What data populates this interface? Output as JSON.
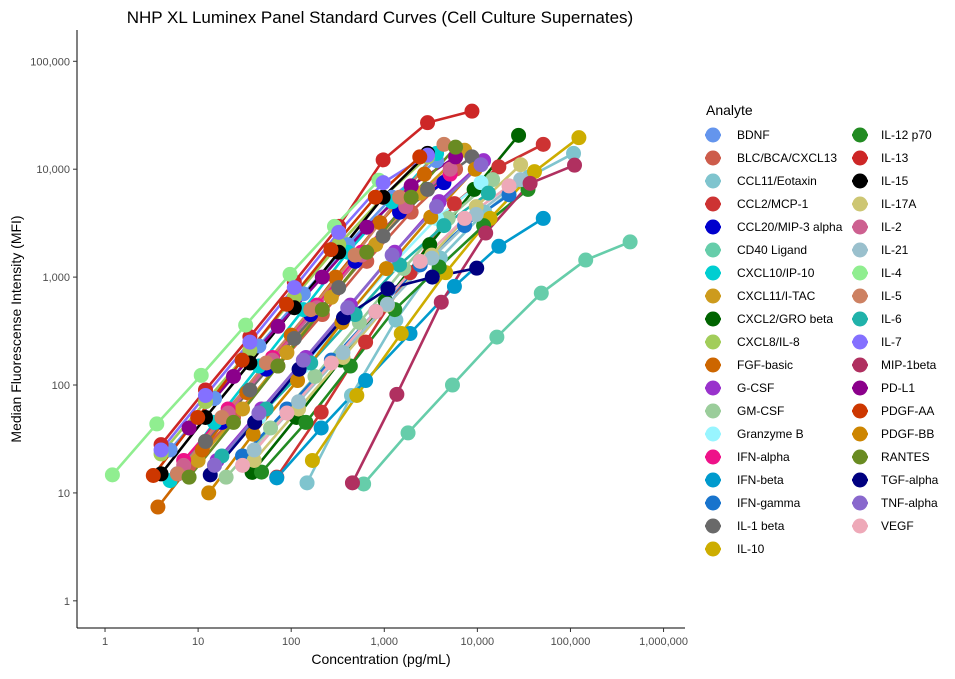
{
  "chart_data": {
    "type": "line",
    "title": "NHP XL Luminex Panel Standard Curves (Cell Culture Supernates)",
    "xlabel": "Concentration (pg/mL)",
    "ylabel": "Median Fluorescense Intensity (MFI)",
    "x_scale": "log10",
    "y_scale": "log10",
    "xlim": [
      0.5,
      1700000
    ],
    "ylim": [
      0.56,
      195000
    ],
    "x_ticks": [
      1,
      10,
      100,
      1000,
      10000,
      100000,
      1000000
    ],
    "x_tick_labels": [
      "1",
      "10",
      "100",
      "1,000",
      "10,000",
      "100,000",
      "1,000,000"
    ],
    "y_ticks": [
      1,
      10,
      100,
      1000,
      10000,
      100000
    ],
    "y_tick_labels": [
      "1",
      "10",
      "100",
      "1,000",
      "10,000",
      "100,000"
    ],
    "grid": false,
    "legend": {
      "title": "Analyte",
      "placement": "right"
    },
    "series": [
      {
        "name": "BDNF",
        "color": "#6495ED",
        "x0": 5,
        "y": [
          25,
          75,
          230,
          700,
          2000,
          5500,
          12000
        ]
      },
      {
        "name": "BLC/BCA/CXCL13",
        "color": "#CD5C4B",
        "x0": 8,
        "y": [
          18,
          50,
          150,
          450,
          1400,
          4000,
          10000
        ]
      },
      {
        "name": "CCL11/Eotaxin",
        "color": "#7FC4CE",
        "x0": 148,
        "y": [
          12.4,
          80,
          400,
          1500,
          4000,
          8500,
          14000
        ]
      },
      {
        "name": "CCL2/MCP-1",
        "color": "#CD3333",
        "x0": 70,
        "y": [
          14,
          56,
          250,
          1100,
          4800,
          10500,
          17000
        ]
      },
      {
        "name": "CCL20/MIP-3 alpha",
        "color": "#0000CD",
        "x0": 6,
        "y": [
          15,
          45,
          140,
          450,
          1400,
          4000,
          7500
        ]
      },
      {
        "name": "CD40 Ligand",
        "color": "#66CDAA",
        "x0": 600,
        "y": [
          12.1,
          36,
          100,
          278,
          710,
          1440,
          2120
        ]
      },
      {
        "name": "CXCL10/IP-10",
        "color": "#00CED1",
        "x0": 5,
        "y": [
          13,
          45,
          150,
          500,
          1700,
          5000,
          14000
        ]
      },
      {
        "name": "CXCL11/I-TAC",
        "color": "#CD9B1D",
        "x0": 10,
        "y": [
          20,
          60,
          200,
          650,
          2000,
          6000,
          15000
        ]
      },
      {
        "name": "CXCL2/GRO beta",
        "color": "#006400",
        "x0": 38,
        "y": [
          15.5,
          50,
          170,
          600,
          2000,
          6500,
          20600
        ]
      },
      {
        "name": "CXCL8/IL-8",
        "color": "#A2CD5A",
        "x0": 4,
        "y": [
          23,
          70,
          210,
          650,
          2000,
          5500,
          13000
        ]
      },
      {
        "name": "FGF-basic",
        "color": "#CD6600",
        "x0": 3.7,
        "y": [
          7.4,
          25,
          85,
          290,
          1000,
          3200,
          9000
        ]
      },
      {
        "name": "G-CSF",
        "color": "#9932CC",
        "x0": 16,
        "y": [
          20,
          60,
          180,
          550,
          1700,
          5000,
          12000
        ]
      },
      {
        "name": "GM-CSF",
        "color": "#9BCD9B",
        "x0": 20,
        "y": [
          14,
          40,
          120,
          380,
          1200,
          3500,
          8000
        ]
      },
      {
        "name": "Granzyme B",
        "color": "#98F5FF",
        "x0": 15,
        "y": [
          18,
          50,
          150,
          450,
          1300,
          3500,
          7500
        ]
      },
      {
        "name": "IFN-alpha",
        "color": "#EE1289",
        "x0": 7,
        "y": [
          20,
          60,
          180,
          550,
          1700,
          4500,
          9000
        ]
      },
      {
        "name": "IFN-beta",
        "color": "#009ACD",
        "x0": 70,
        "y": [
          13.8,
          40,
          110,
          300,
          820,
          1930,
          3500
        ]
      },
      {
        "name": "IFN-gamma",
        "color": "#1874CD",
        "x0": 30,
        "y": [
          22,
          60,
          170,
          480,
          1300,
          3000,
          5800
        ]
      },
      {
        "name": "IL-1 beta",
        "color": "#696969",
        "x0": 12,
        "y": [
          30,
          90,
          270,
          800,
          2400,
          6500,
          13000
        ]
      },
      {
        "name": "IL-10",
        "color": "#CDAD00",
        "x0": 169,
        "y": [
          20,
          80,
          300,
          1100,
          3500,
          9500,
          19600
        ]
      },
      {
        "name": "IL-12 p70",
        "color": "#228B22",
        "x0": 48,
        "y": [
          15.6,
          45,
          150,
          500,
          1240,
          3000,
          6500
        ]
      },
      {
        "name": "IL-13",
        "color": "#CD2626",
        "x0": 4,
        "y": [
          28,
          90,
          280,
          900,
          2950,
          12200,
          27000,
          34500
        ]
      },
      {
        "name": "IL-15",
        "color": "#000000",
        "x0": 4,
        "y": [
          15,
          50,
          160,
          520,
          1700,
          5500,
          14000
        ]
      },
      {
        "name": "IL-17A",
        "color": "#CDC673",
        "x0": 40,
        "y": [
          20,
          60,
          180,
          550,
          1600,
          4500,
          11000
        ]
      },
      {
        "name": "IL-2",
        "color": "#CD6090",
        "x0": 7,
        "y": [
          18,
          55,
          170,
          520,
          1600,
          4500,
          10000
        ]
      },
      {
        "name": "IL-21",
        "color": "#9AC0CD",
        "x0": 40,
        "y": [
          25,
          70,
          200,
          560,
          1500,
          3800,
          8000
        ]
      },
      {
        "name": "IL-4",
        "color": "#90EE90",
        "x0": 1.2,
        "y": [
          14.7,
          43.6,
          123,
          359,
          1060,
          2950,
          7900
        ]
      },
      {
        "name": "IL-5",
        "color": "#CD8162",
        "x0": 6,
        "y": [
          15,
          50,
          160,
          500,
          1600,
          5500,
          17000
        ]
      },
      {
        "name": "IL-6",
        "color": "#20B2AA",
        "x0": 18,
        "y": [
          22,
          60,
          160,
          450,
          1300,
          3000,
          6000
        ]
      },
      {
        "name": "IL-7",
        "color": "#8470FF",
        "x0": 4,
        "y": [
          25,
          80,
          250,
          800,
          2600,
          7500,
          13500
        ]
      },
      {
        "name": "MIP-1beta",
        "color": "#B03060",
        "x0": 455,
        "y": [
          12.4,
          82,
          585,
          2560,
          7400,
          10900
        ]
      },
      {
        "name": "PD-L1",
        "color": "#8B008B",
        "x0": 8,
        "y": [
          40,
          120,
          350,
          1000,
          2900,
          7000,
          13000
        ]
      },
      {
        "name": "PDGF-AA",
        "color": "#CD3700",
        "x0": 3.3,
        "y": [
          14.5,
          50,
          170,
          560,
          1800,
          5500,
          13000
        ]
      },
      {
        "name": "PDGF-BB",
        "color": "#CD8500",
        "x0": 13,
        "y": [
          10,
          35,
          110,
          380,
          1200,
          3600,
          10000
        ]
      },
      {
        "name": "RANTES",
        "color": "#698B22",
        "x0": 8,
        "y": [
          14,
          45,
          150,
          500,
          1700,
          5500,
          16000
        ]
      },
      {
        "name": "TGF-alpha",
        "color": "#000080",
        "x0": 13.5,
        "y": [
          14.7,
          45,
          140,
          420,
          780,
          1000,
          1210
        ]
      },
      {
        "name": "TNF-alpha",
        "color": "#8968CD",
        "x0": 15,
        "y": [
          18,
          55,
          170,
          520,
          1600,
          4500,
          11000
        ]
      },
      {
        "name": "VEGF",
        "color": "#EEA9B8",
        "x0": 30,
        "y": [
          18,
          55,
          160,
          480,
          1400,
          3500,
          7000
        ]
      }
    ],
    "dilution_factor": 3
  }
}
